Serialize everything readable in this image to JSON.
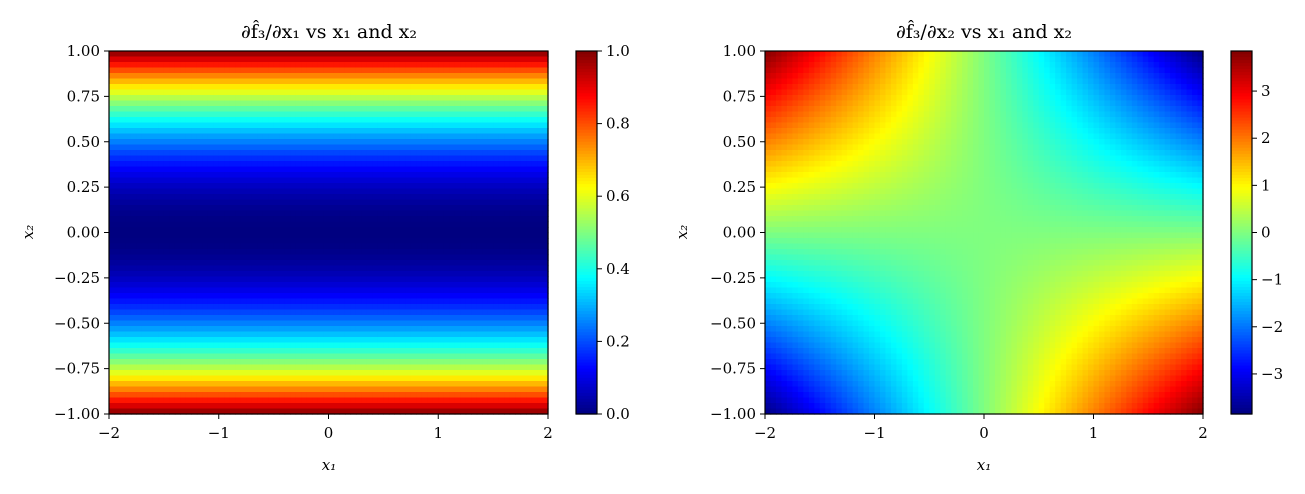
{
  "chart_data": [
    {
      "type": "heatmap",
      "title": "∂f̂₃/∂x₁ vs x₁ and x₂",
      "xlabel": "x₁",
      "ylabel": "x₂",
      "xlim": [
        -2,
        2
      ],
      "ylim": [
        -1,
        1
      ],
      "xticks": [
        "−2",
        "−1",
        "0",
        "1",
        "2"
      ],
      "yticks": [
        "1.00",
        "0.75",
        "0.50",
        "0.25",
        "0.00",
        "−0.25",
        "−0.50",
        "−0.75",
        "−1.00"
      ],
      "colormap": "jet",
      "colorbar": {
        "range": [
          0,
          1
        ],
        "ticks": [
          "1.0",
          "0.8",
          "0.6",
          "0.4",
          "0.2",
          "0.0"
        ]
      },
      "function": "x2^2"
    },
    {
      "type": "heatmap",
      "title": "∂f̂₃/∂x₂ vs x₁ and x₂",
      "xlabel": "x₁",
      "ylabel": "x₂",
      "xlim": [
        -2,
        2
      ],
      "ylim": [
        -1,
        1
      ],
      "xticks": [
        "−2",
        "−1",
        "0",
        "1",
        "2"
      ],
      "yticks": [
        "1.00",
        "0.75",
        "0.50",
        "0.25",
        "0.00",
        "−0.25",
        "−0.50",
        "−0.75",
        "−1.00"
      ],
      "colormap": "jet",
      "colorbar": {
        "range": [
          -3.85,
          3.85
        ],
        "ticks": [
          "3",
          "2",
          "1",
          "0",
          "−1",
          "−2",
          "−3"
        ]
      },
      "function": "-2*x1*x2 (approx.)"
    }
  ]
}
